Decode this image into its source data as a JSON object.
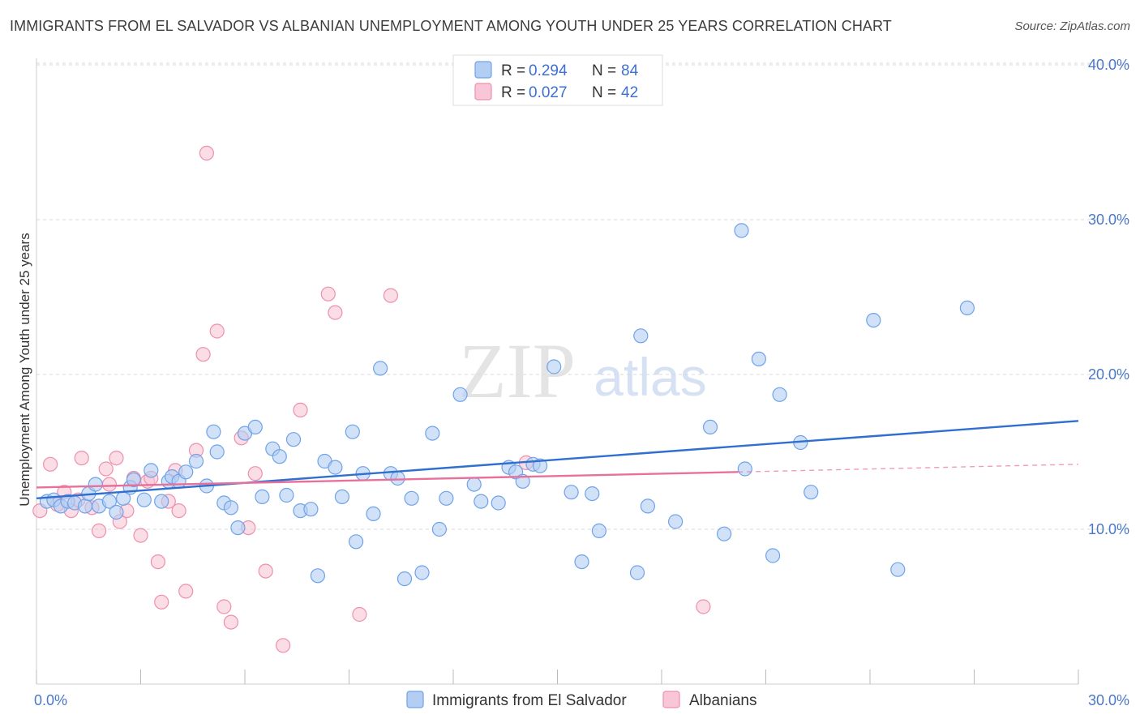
{
  "title": "IMMIGRANTS FROM EL SALVADOR VS ALBANIAN UNEMPLOYMENT AMONG YOUTH UNDER 25 YEARS CORRELATION CHART",
  "source": "Source: ZipAtlas.com",
  "watermark": {
    "zip": "ZIP",
    "atlas": "atlas"
  },
  "colors": {
    "blue": "#6fa3e8",
    "blue_fill": "#b3cdf3",
    "blue_line": "#2f6fd0",
    "pink": "#ee8fae",
    "pink_fill": "#f8c6d6",
    "pink_line": "#e7719b",
    "tick_text": "#4a78c9",
    "grid": "#d8d8d8"
  },
  "legend": {
    "rows": [
      {
        "r_label": "R =",
        "r_value": "0.294",
        "n_label": "N =",
        "n_value": "84",
        "series": "blue"
      },
      {
        "r_label": "R =",
        "r_value": "0.027",
        "n_label": "N =",
        "n_value": "42",
        "series": "pink"
      }
    ]
  },
  "chart_data": {
    "type": "scatter",
    "title": "IMMIGRANTS FROM EL SALVADOR VS ALBANIAN UNEMPLOYMENT AMONG YOUTH UNDER 25 YEARS CORRELATION CHART",
    "xlabel": "",
    "ylabel": "Unemployment Among Youth under 25 years",
    "xlim": [
      0,
      30
    ],
    "ylim": [
      0,
      40
    ],
    "x_tick_labels": [
      "0.0%",
      "30.0%"
    ],
    "y_ticks": [
      10,
      20,
      30,
      40
    ],
    "y_tick_labels": [
      "10.0%",
      "20.0%",
      "30.0%",
      "40.0%"
    ],
    "grid": true,
    "legend_position": "top-center",
    "series": [
      {
        "name": "Immigrants from El Salvador",
        "color": "blue",
        "trend": {
          "x": [
            0,
            30
          ],
          "y": [
            12.0,
            17.0
          ],
          "dashed_extension": false
        },
        "points": [
          [
            0.3,
            11.8
          ],
          [
            0.5,
            11.9
          ],
          [
            0.7,
            11.5
          ],
          [
            0.9,
            11.8
          ],
          [
            1.1,
            11.7
          ],
          [
            1.4,
            11.5
          ],
          [
            1.5,
            12.3
          ],
          [
            1.7,
            12.9
          ],
          [
            1.8,
            11.5
          ],
          [
            2.1,
            11.8
          ],
          [
            2.3,
            11.1
          ],
          [
            2.5,
            12.0
          ],
          [
            2.7,
            12.7
          ],
          [
            2.8,
            13.2
          ],
          [
            3.1,
            11.9
          ],
          [
            3.3,
            13.8
          ],
          [
            3.6,
            11.8
          ],
          [
            3.8,
            13.1
          ],
          [
            3.9,
            13.4
          ],
          [
            4.1,
            13.1
          ],
          [
            4.3,
            13.7
          ],
          [
            4.6,
            14.4
          ],
          [
            4.9,
            12.8
          ],
          [
            5.1,
            16.3
          ],
          [
            5.2,
            15.0
          ],
          [
            5.4,
            11.7
          ],
          [
            5.6,
            11.4
          ],
          [
            5.8,
            10.1
          ],
          [
            6.0,
            16.2
          ],
          [
            6.3,
            16.6
          ],
          [
            6.5,
            12.1
          ],
          [
            6.8,
            15.2
          ],
          [
            7.0,
            14.7
          ],
          [
            7.2,
            12.2
          ],
          [
            7.4,
            15.8
          ],
          [
            7.6,
            11.2
          ],
          [
            7.9,
            11.3
          ],
          [
            8.1,
            7.0
          ],
          [
            8.3,
            14.4
          ],
          [
            8.6,
            14.0
          ],
          [
            8.8,
            12.1
          ],
          [
            9.1,
            16.3
          ],
          [
            9.2,
            9.2
          ],
          [
            9.4,
            13.6
          ],
          [
            9.7,
            11.0
          ],
          [
            9.9,
            20.4
          ],
          [
            10.2,
            13.6
          ],
          [
            10.4,
            13.3
          ],
          [
            10.6,
            6.8
          ],
          [
            10.8,
            12.0
          ],
          [
            11.1,
            7.2
          ],
          [
            11.4,
            16.2
          ],
          [
            11.6,
            10.0
          ],
          [
            11.8,
            12.0
          ],
          [
            12.2,
            18.7
          ],
          [
            12.6,
            12.9
          ],
          [
            12.8,
            11.8
          ],
          [
            13.3,
            11.7
          ],
          [
            13.6,
            14.0
          ],
          [
            13.8,
            13.7
          ],
          [
            14.0,
            13.1
          ],
          [
            14.3,
            14.2
          ],
          [
            14.5,
            14.1
          ],
          [
            14.9,
            20.5
          ],
          [
            15.4,
            12.4
          ],
          [
            15.7,
            7.9
          ],
          [
            16.0,
            12.3
          ],
          [
            16.2,
            9.9
          ],
          [
            17.3,
            7.2
          ],
          [
            17.4,
            22.5
          ],
          [
            17.6,
            11.5
          ],
          [
            18.4,
            10.5
          ],
          [
            19.4,
            16.6
          ],
          [
            19.8,
            9.7
          ],
          [
            20.3,
            29.3
          ],
          [
            20.4,
            13.9
          ],
          [
            20.8,
            21.0
          ],
          [
            21.2,
            8.3
          ],
          [
            21.4,
            18.7
          ],
          [
            22.0,
            15.6
          ],
          [
            22.3,
            12.4
          ],
          [
            24.1,
            23.5
          ],
          [
            24.8,
            7.4
          ],
          [
            26.8,
            24.3
          ]
        ]
      },
      {
        "name": "Albanians",
        "color": "pink",
        "trend": {
          "x": [
            0,
            20.2
          ],
          "y": [
            12.7,
            13.7
          ],
          "dashed_extension": true,
          "dashed_to": [
            30,
            14.2
          ]
        },
        "points": [
          [
            0.1,
            11.2
          ],
          [
            0.4,
            14.2
          ],
          [
            0.6,
            11.6
          ],
          [
            0.8,
            12.4
          ],
          [
            1.0,
            11.2
          ],
          [
            1.2,
            11.9
          ],
          [
            1.3,
            14.6
          ],
          [
            1.6,
            11.4
          ],
          [
            1.8,
            9.9
          ],
          [
            2.0,
            13.9
          ],
          [
            2.1,
            12.9
          ],
          [
            2.3,
            14.6
          ],
          [
            2.4,
            10.5
          ],
          [
            2.6,
            11.2
          ],
          [
            2.8,
            13.3
          ],
          [
            3.0,
            9.6
          ],
          [
            3.2,
            13.1
          ],
          [
            3.3,
            13.3
          ],
          [
            3.5,
            7.9
          ],
          [
            3.6,
            5.3
          ],
          [
            3.8,
            11.8
          ],
          [
            4.0,
            13.8
          ],
          [
            4.1,
            11.2
          ],
          [
            4.3,
            6.0
          ],
          [
            4.6,
            15.1
          ],
          [
            4.8,
            21.3
          ],
          [
            4.9,
            34.3
          ],
          [
            5.2,
            22.8
          ],
          [
            5.4,
            5.0
          ],
          [
            5.6,
            4.0
          ],
          [
            5.9,
            15.9
          ],
          [
            6.1,
            10.1
          ],
          [
            6.3,
            13.6
          ],
          [
            6.6,
            7.3
          ],
          [
            7.1,
            2.5
          ],
          [
            7.6,
            17.7
          ],
          [
            8.4,
            25.2
          ],
          [
            8.6,
            24.0
          ],
          [
            9.3,
            4.5
          ],
          [
            10.2,
            25.1
          ],
          [
            14.1,
            14.3
          ],
          [
            19.2,
            5.0
          ]
        ]
      }
    ]
  },
  "bottom_legend": [
    {
      "label": "Immigrants from El Salvador",
      "series": "blue"
    },
    {
      "label": "Albanians",
      "series": "pink"
    }
  ]
}
